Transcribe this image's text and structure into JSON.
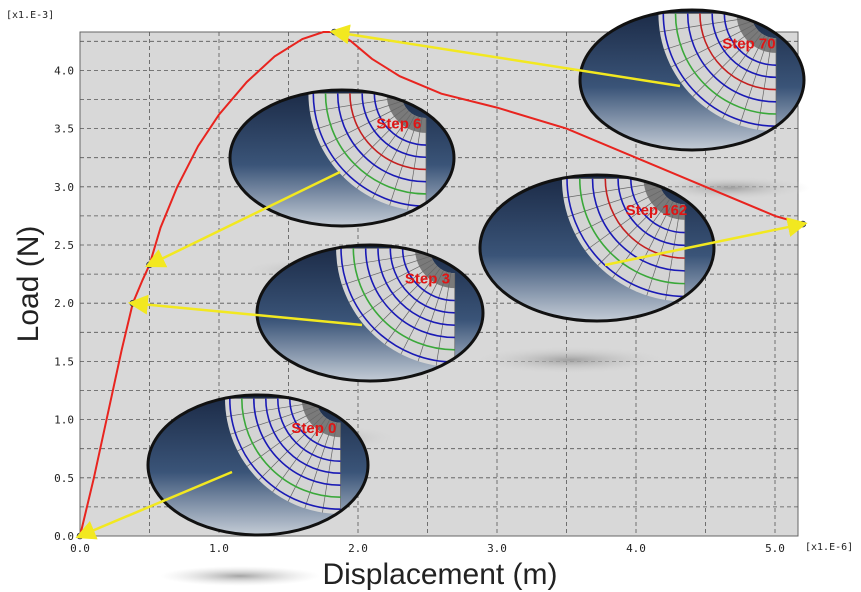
{
  "chart_data": {
    "type": "line",
    "title": "",
    "xlabel": "Displacement (m)",
    "ylabel": "Load (N)",
    "x_multiplier": "[x1.E-6]",
    "y_multiplier": "[x1.E-3]",
    "xlim": [
      0,
      5.2
    ],
    "ylim": [
      0,
      4.35
    ],
    "x_ticks": [
      "0.0",
      "1.0",
      "2.0",
      "3.0",
      "4.0",
      "5.0"
    ],
    "y_ticks": [
      "0.0",
      "0.5",
      "1.0",
      "1.5",
      "2.0",
      "2.5",
      "3.0",
      "3.5",
      "4.0"
    ],
    "grid": true,
    "series": [
      {
        "x": [
          0,
          0.1,
          0.2,
          0.3,
          0.38,
          0.45,
          0.5,
          0.58,
          0.7,
          0.85,
          1.0,
          1.2,
          1.4,
          1.6,
          1.75,
          1.85,
          1.95,
          2.1,
          2.3,
          2.6,
          3.0,
          3.5,
          4.0,
          4.5,
          5.0,
          5.2
        ],
        "y": [
          0,
          0.5,
          1.05,
          1.6,
          2.0,
          2.2,
          2.33,
          2.65,
          3.0,
          3.35,
          3.62,
          3.9,
          4.12,
          4.27,
          4.33,
          4.33,
          4.25,
          4.1,
          3.95,
          3.8,
          3.68,
          3.5,
          3.25,
          3.0,
          2.75,
          2.68
        ]
      }
    ],
    "marked_points": [
      {
        "label": "Step 0",
        "x": 0.0,
        "y": 0.0
      },
      {
        "label": "Step 3",
        "x": 0.38,
        "y": 2.0
      },
      {
        "label": "Step 6",
        "x": 0.5,
        "y": 2.33
      },
      {
        "label": "Step 70",
        "x": 1.83,
        "y": 4.33
      },
      {
        "label": "Step 162",
        "x": 5.2,
        "y": 2.68
      }
    ]
  },
  "colors": {
    "curve": "#e8241f",
    "arrow": "#f2e820",
    "plot_bg": "#d8d8d8",
    "inset_dark": "#1c2a45",
    "mesh_blue": "#1a1ab5",
    "mesh_green": "#3aa83a",
    "mesh_red": "#c42020"
  }
}
